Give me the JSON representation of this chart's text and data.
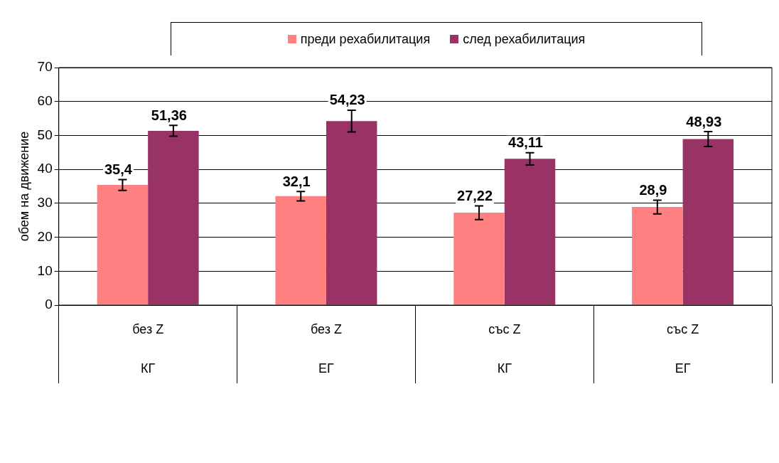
{
  "chart_data": {
    "type": "bar",
    "ylabel": "обем на движение",
    "categories": [
      "без Z\nКГ",
      "без Z\nЕГ",
      "със Z\nКГ",
      "със Z\nЕГ"
    ],
    "series": [
      {
        "name": "преди рехабилитация",
        "color": "#ff8080",
        "values": [
          35.4,
          32.1,
          27.22,
          28.9
        ],
        "errors": [
          1.6,
          1.4,
          2,
          2
        ],
        "value_labels": [
          "35,4",
          "32,1",
          "27,22",
          "28,9"
        ]
      },
      {
        "name": "след рехабилитация",
        "color": "#993366",
        "values": [
          51.36,
          54.23,
          43.11,
          48.93
        ],
        "errors": [
          1.6,
          3.2,
          1.8,
          2.2
        ],
        "value_labels": [
          "51,36",
          "54,23",
          "43,11",
          "48,93"
        ]
      }
    ],
    "ylim": [
      0,
      70
    ],
    "yticks": [
      0,
      10,
      20,
      30,
      40,
      50,
      60,
      70
    ],
    "grid": "y",
    "legend": "top"
  }
}
